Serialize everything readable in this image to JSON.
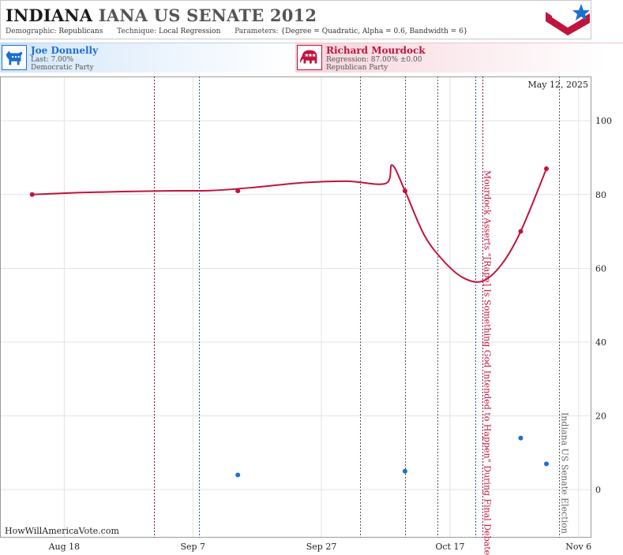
{
  "header": {
    "title_state": "INDIANA",
    "title_rest": "IANA US SENATE 2012",
    "demographic_label": "Demographic:",
    "demographic_value": "Republicans",
    "technique_label": "Technique:",
    "technique_value": "Local Regression",
    "parameters_label": "Parameters:",
    "parameters_value": "{Degree = Quadratic, Alpha = 0.6, Bandwidth = 6}"
  },
  "candidates": {
    "democrat": {
      "name": "Joe Donnelly",
      "stat": "Last: 7.00%",
      "party": "Democratic Party",
      "color": "#1a6fd1",
      "icon": "donkey-icon"
    },
    "republican": {
      "name": "Richard Mourdock",
      "stat": "Regression: 87.00% ±0.00",
      "party": "Republican Party",
      "color": "#c0143c",
      "icon": "elephant-icon"
    }
  },
  "watermark": "HowWillAmericaVote.com",
  "chart_data": {
    "type": "line",
    "date_label": "May 12, 2025",
    "x_ticks": [
      "Aug 18",
      "Sep 7",
      "Sep 27",
      "Oct 17",
      "Nov 6"
    ],
    "y_ticks": [
      0,
      20,
      40,
      60,
      80,
      100
    ],
    "ylim": [
      -13,
      112
    ],
    "xlim": [
      "2012-08-08",
      "2012-11-08"
    ],
    "grid": true,
    "series": [
      {
        "name": "Richard Mourdock",
        "color": "#c0143c",
        "polls": [
          {
            "x": "2012-08-13",
            "y": 80
          },
          {
            "x": "2012-09-14",
            "y": 81
          },
          {
            "x": "2012-10-10",
            "y": 81
          },
          {
            "x": "2012-10-28",
            "y": 70
          },
          {
            "x": "2012-11-01",
            "y": 87
          }
        ],
        "trend": [
          {
            "x": "2012-08-13",
            "y": 80
          },
          {
            "x": "2012-08-20",
            "y": 80.5
          },
          {
            "x": "2012-08-27",
            "y": 80.8
          },
          {
            "x": "2012-09-03",
            "y": 81.0
          },
          {
            "x": "2012-09-10",
            "y": 81.1
          },
          {
            "x": "2012-09-17",
            "y": 82.0
          },
          {
            "x": "2012-09-24",
            "y": 83.2
          },
          {
            "x": "2012-10-01",
            "y": 83.6
          },
          {
            "x": "2012-10-07",
            "y": 83.0
          },
          {
            "x": "2012-10-08",
            "y": 88.0
          },
          {
            "x": "2012-10-10",
            "y": 81.0
          },
          {
            "x": "2012-10-13",
            "y": 69.0
          },
          {
            "x": "2012-10-16",
            "y": 62.0
          },
          {
            "x": "2012-10-19",
            "y": 57.5
          },
          {
            "x": "2012-10-22",
            "y": 56.5
          },
          {
            "x": "2012-10-25",
            "y": 61.0
          },
          {
            "x": "2012-10-28",
            "y": 70.0
          },
          {
            "x": "2012-11-01",
            "y": 87.0
          }
        ]
      },
      {
        "name": "Joe Donnelly",
        "color": "#1a6fd1",
        "polls": [
          {
            "x": "2012-09-14",
            "y": 4
          },
          {
            "x": "2012-10-10",
            "y": 5
          },
          {
            "x": "2012-10-28",
            "y": 14
          },
          {
            "x": "2012-11-01",
            "y": 7
          }
        ]
      }
    ],
    "event_lines": [
      {
        "x": "2012-09-01",
        "color": "#8a1040"
      },
      {
        "x": "2012-09-08",
        "color": "#2255aa"
      },
      {
        "x": "2012-10-03",
        "color": "#555555"
      },
      {
        "x": "2012-10-10",
        "color": "#555555"
      },
      {
        "x": "2012-10-15",
        "color": "#555555"
      },
      {
        "x": "2012-10-21",
        "color": "#2255aa"
      },
      {
        "x": "2012-10-22",
        "color": "#8a1040"
      },
      {
        "x": "2012-11-03",
        "color": "#555555"
      }
    ],
    "annotations": [
      {
        "x": "2012-10-22",
        "text": "Mourdock Asserts \"[Rape] Is Something God Intended to Happen\" During Final Debate",
        "color": "#c0143c"
      },
      {
        "x": "2012-11-03",
        "text": "Indiana US Senate Election",
        "color": "#666666"
      }
    ]
  }
}
